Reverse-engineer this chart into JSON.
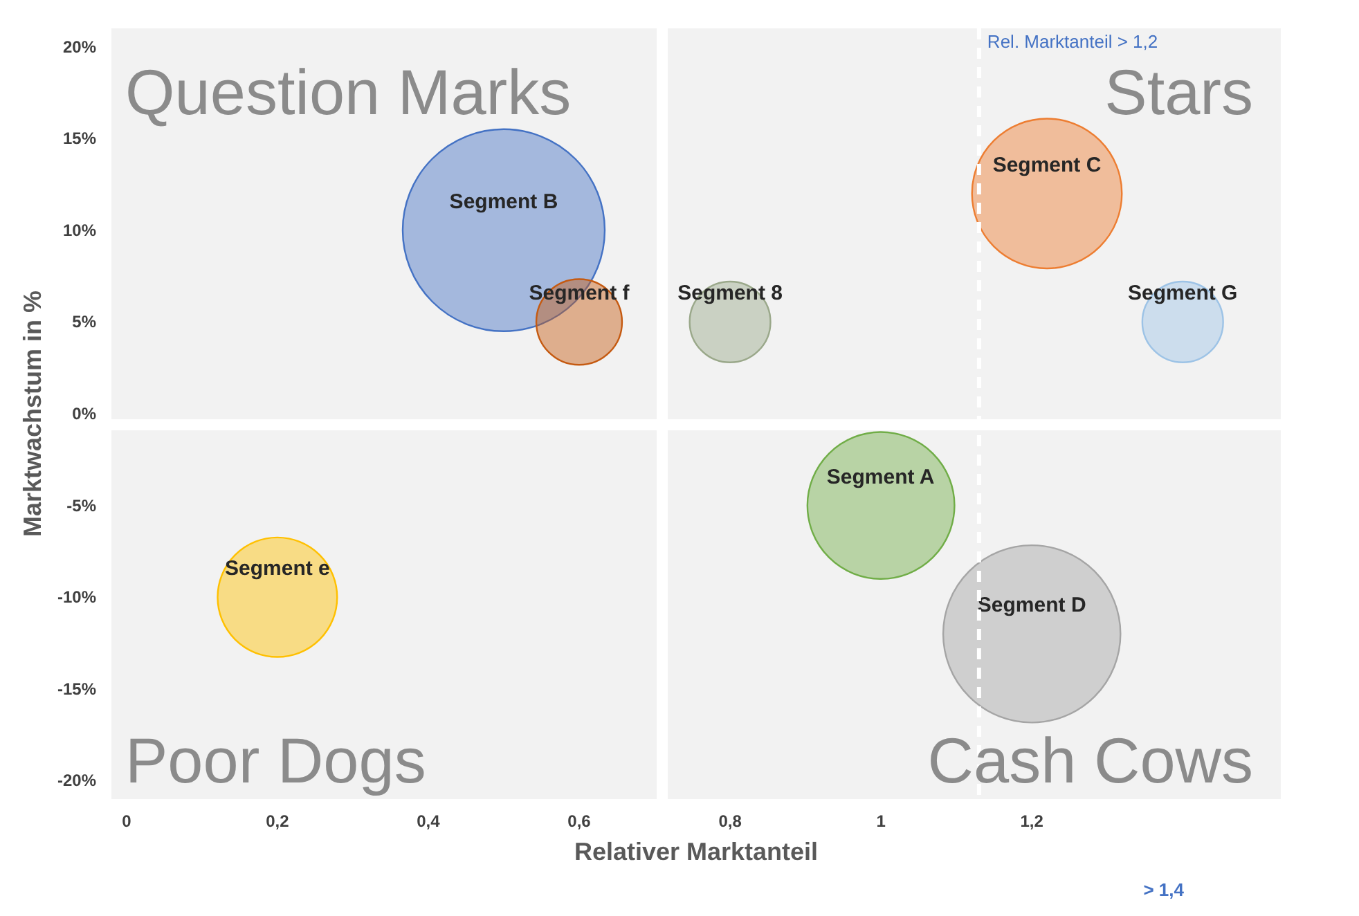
{
  "chart_data": {
    "type": "bubble",
    "xlabel": "Relativer Marktanteil",
    "ylabel": "Marktwachstum in %",
    "xlim": [
      -0.02,
      1.53
    ],
    "ylim": [
      -21,
      21
    ],
    "xticks": [
      0,
      {
        "value": 0.2,
        "label": "0,2"
      },
      {
        "value": 0.4,
        "label": "0,4"
      },
      {
        "value": 0.6,
        "label": "0,6"
      },
      {
        "value": 0.8,
        "label": "0,8"
      },
      1,
      {
        "value": 1.2,
        "label": "1,2"
      }
    ],
    "yticks": [
      {
        "value": -20,
        "label": "-20%"
      },
      {
        "value": -15,
        "label": "-15%"
      },
      {
        "value": -10,
        "label": "-10%"
      },
      {
        "value": -5,
        "label": "-5%"
      },
      {
        "value": 0,
        "label": "0%"
      },
      {
        "value": 5,
        "label": "5%"
      },
      {
        "value": 10,
        "label": "10%"
      },
      {
        "value": 15,
        "label": "15%"
      },
      {
        "value": 20,
        "label": "20%"
      }
    ],
    "grid": false,
    "legend": false,
    "series": [
      {
        "name": "Segment B",
        "color": "#4472c4",
        "x": [
          0.5
        ],
        "values": [
          10
        ],
        "sizes": [
          1
        ]
      },
      {
        "name": "Segment f",
        "color": "#c55a11",
        "x": [
          0.6
        ],
        "values": [
          5
        ],
        "sizes": [
          0.18
        ]
      },
      {
        "name": "Segment 8",
        "color": "#9aa88a",
        "x": [
          0.8
        ],
        "values": [
          5
        ],
        "sizes": [
          0.16
        ]
      },
      {
        "name": "Segment C",
        "color": "#ed7d31",
        "x": [
          1.22
        ],
        "values": [
          12
        ],
        "sizes": [
          0.55
        ]
      },
      {
        "name": "Segment G",
        "color": "#9dc3e6",
        "x": [
          1.4
        ],
        "values": [
          5
        ],
        "sizes": [
          0.16
        ]
      },
      {
        "name": "Segment A",
        "color": "#70ad47",
        "x": [
          1.0
        ],
        "values": [
          -5
        ],
        "sizes": [
          0.53
        ]
      },
      {
        "name": "Segment D",
        "color": "#a5a5a5",
        "x": [
          1.2
        ],
        "values": [
          -12
        ],
        "sizes": [
          0.77
        ]
      },
      {
        "name": "Segment e",
        "color": "#ffc000",
        "x": [
          0.2
        ],
        "values": [
          -10
        ],
        "sizes": [
          0.35
        ]
      }
    ],
    "ref_lines": [
      {
        "axis": "x",
        "value": 0.71,
        "color": "#ffffff",
        "line_style": "solid"
      },
      {
        "axis": "y",
        "value": -0.6,
        "color": "#ffffff",
        "line_style": "solid"
      },
      {
        "axis": "x",
        "value": 1.13,
        "color": "#ffffff",
        "line_style": "dashed",
        "label": "Rel. Marktanteil > 1,2"
      }
    ],
    "annotations": [
      "Question Marks",
      "Stars",
      "Poor Dogs",
      "Cash Cows",
      "> 1,4"
    ]
  }
}
